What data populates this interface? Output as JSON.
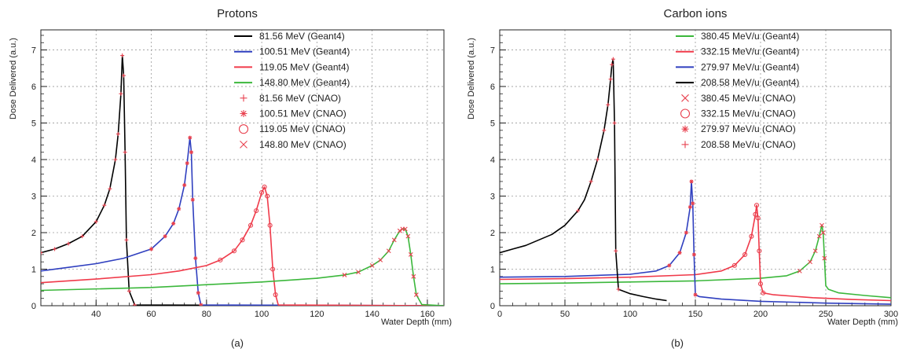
{
  "colors": {
    "black": "#000000",
    "blue": "#2f3fbf",
    "red": "#f03a4a",
    "green": "#3bb73b",
    "marker": "#e8404e",
    "grid": "#9a9a9a"
  },
  "chart_data": [
    {
      "id": "a",
      "type": "line",
      "title": "Protons",
      "caption": "(a)",
      "xlabel": "Water Depth (mm)",
      "ylabel": "Dose Delivered (a.u.)",
      "xlim": [
        20,
        166
      ],
      "ylim": [
        0,
        7.55
      ],
      "xticks": [
        40,
        60,
        80,
        100,
        120,
        140,
        160
      ],
      "yticks": [
        0,
        1,
        2,
        3,
        4,
        5,
        6,
        7
      ],
      "grid": true,
      "legend_position": "top-right",
      "series": [
        {
          "name": "81.56 MeV (Geant4)",
          "kind": "line",
          "color": "black",
          "x": [
            20,
            25,
            30,
            35,
            40,
            43,
            45,
            47,
            48,
            49,
            49.5,
            50,
            50.5,
            51,
            52,
            54,
            166
          ],
          "y": [
            1.45,
            1.55,
            1.7,
            1.9,
            2.3,
            2.75,
            3.2,
            4.0,
            4.7,
            5.8,
            6.85,
            6.3,
            4.2,
            1.8,
            0.4,
            0.02,
            0.0
          ]
        },
        {
          "name": "100.51 MeV (Geant4)",
          "kind": "line",
          "color": "blue",
          "x": [
            20,
            30,
            40,
            50,
            60,
            65,
            68,
            70,
            72,
            73,
            74,
            74.5,
            75,
            76,
            77,
            78,
            166
          ],
          "y": [
            0.95,
            1.05,
            1.15,
            1.3,
            1.55,
            1.9,
            2.25,
            2.65,
            3.3,
            3.9,
            4.6,
            4.2,
            2.9,
            1.3,
            0.35,
            0.02,
            0.0
          ]
        },
        {
          "name": "119.05 MeV (Geant4)",
          "kind": "line",
          "color": "red",
          "x": [
            20,
            40,
            60,
            70,
            80,
            85,
            90,
            93,
            96,
            98,
            100,
            101,
            102,
            103,
            104,
            105,
            106,
            166
          ],
          "y": [
            0.63,
            0.73,
            0.85,
            0.95,
            1.1,
            1.25,
            1.5,
            1.8,
            2.2,
            2.6,
            3.1,
            3.25,
            3.0,
            2.2,
            1.0,
            0.3,
            0.02,
            0.0
          ]
        },
        {
          "name": "148.80 MeV (Geant4)",
          "kind": "line",
          "color": "green",
          "x": [
            20,
            60,
            100,
            120,
            130,
            135,
            140,
            143,
            146,
            148,
            150,
            151,
            152,
            153,
            154,
            155,
            156,
            158,
            166
          ],
          "y": [
            0.42,
            0.5,
            0.65,
            0.75,
            0.84,
            0.92,
            1.1,
            1.25,
            1.5,
            1.8,
            2.05,
            2.1,
            2.1,
            1.9,
            1.4,
            0.8,
            0.3,
            0.03,
            0.0
          ]
        },
        {
          "name": "81.56 MeV (CNAO)",
          "kind": "marker",
          "marker": "plus",
          "color": "marker",
          "x": [
            20,
            25,
            30,
            35,
            40,
            43,
            45,
            47,
            48,
            49,
            49.5,
            50,
            50.5,
            51,
            52,
            54
          ],
          "y": [
            1.45,
            1.55,
            1.7,
            1.9,
            2.3,
            2.75,
            3.2,
            4.0,
            4.7,
            5.8,
            6.85,
            6.3,
            4.2,
            1.8,
            0.4,
            0.02
          ]
        },
        {
          "name": "100.51 MeV (CNAO)",
          "kind": "marker",
          "marker": "star",
          "color": "marker",
          "x": [
            60,
            65,
            68,
            70,
            72,
            73,
            74,
            74.5,
            75,
            76,
            77,
            78
          ],
          "y": [
            1.55,
            1.9,
            2.25,
            2.65,
            3.3,
            3.9,
            4.6,
            4.2,
            2.9,
            1.3,
            0.35,
            0.02
          ]
        },
        {
          "name": "119.05 MeV (CNAO)",
          "kind": "marker",
          "marker": "circle",
          "color": "marker",
          "x": [
            85,
            90,
            93,
            96,
            98,
            100,
            101,
            102,
            103,
            104,
            105
          ],
          "y": [
            1.25,
            1.5,
            1.8,
            2.2,
            2.6,
            3.1,
            3.25,
            3.0,
            2.2,
            1.0,
            0.3
          ]
        },
        {
          "name": "148.80 MeV (CNAO)",
          "kind": "marker",
          "marker": "cross",
          "color": "marker",
          "x": [
            130,
            135,
            140,
            143,
            146,
            148,
            150,
            151,
            152,
            153,
            154,
            155,
            156
          ],
          "y": [
            0.84,
            0.92,
            1.1,
            1.25,
            1.5,
            1.8,
            2.05,
            2.1,
            2.1,
            1.9,
            1.4,
            0.8,
            0.3
          ]
        }
      ]
    },
    {
      "id": "b",
      "type": "line",
      "title": "Carbon ions",
      "caption": "(b)",
      "xlabel": "Water Depth (mm)",
      "ylabel": "Dose Delivered (a.u.)",
      "xlim": [
        0,
        300
      ],
      "ylim": [
        0,
        7.55
      ],
      "xticks": [
        0,
        50,
        100,
        150,
        200,
        250,
        300
      ],
      "yticks": [
        0,
        1,
        2,
        3,
        4,
        5,
        6,
        7
      ],
      "grid": true,
      "legend_position": "top-right",
      "series": [
        {
          "name": "380.45 MeV/u (Geant4)",
          "kind": "line",
          "color": "green",
          "x": [
            0,
            50,
            100,
            150,
            200,
            220,
            230,
            238,
            242,
            245,
            247,
            248,
            249,
            250,
            252,
            260,
            280,
            300
          ],
          "y": [
            0.6,
            0.62,
            0.65,
            0.68,
            0.75,
            0.82,
            0.95,
            1.2,
            1.5,
            1.9,
            2.2,
            2.0,
            1.3,
            0.55,
            0.45,
            0.35,
            0.28,
            0.22
          ]
        },
        {
          "name": "332.15 MeV/u (Geant4)",
          "kind": "line",
          "color": "red",
          "x": [
            0,
            50,
            100,
            150,
            170,
            180,
            188,
            193,
            196,
            197,
            198,
            199,
            200,
            202,
            210,
            240,
            270,
            300
          ],
          "y": [
            0.72,
            0.74,
            0.78,
            0.85,
            0.95,
            1.1,
            1.4,
            1.9,
            2.5,
            2.75,
            2.4,
            1.5,
            0.6,
            0.35,
            0.3,
            0.22,
            0.17,
            0.14
          ]
        },
        {
          "name": "279.97 MeV/u (Geant4)",
          "kind": "line",
          "color": "blue",
          "x": [
            0,
            50,
            100,
            120,
            130,
            138,
            143,
            146,
            147,
            148,
            149,
            150,
            153,
            170,
            200,
            250,
            300
          ],
          "y": [
            0.78,
            0.8,
            0.86,
            0.95,
            1.1,
            1.45,
            2.0,
            2.7,
            3.4,
            2.8,
            1.4,
            0.3,
            0.25,
            0.18,
            0.12,
            0.07,
            0.04
          ]
        },
        {
          "name": "208.58 MeV/u (Geant4)",
          "kind": "line",
          "color": "black",
          "x": [
            0,
            10,
            20,
            30,
            40,
            50,
            60,
            65,
            70,
            75,
            80,
            83,
            85,
            86,
            87,
            88,
            89,
            91,
            100,
            110,
            120,
            128
          ],
          "y": [
            1.45,
            1.55,
            1.65,
            1.8,
            1.95,
            2.2,
            2.6,
            2.9,
            3.4,
            4.0,
            4.8,
            5.5,
            6.2,
            6.6,
            6.75,
            5.0,
            1.5,
            0.45,
            0.33,
            0.25,
            0.18,
            0.14
          ]
        },
        {
          "name": "380.45 MeV/u (CNAO)",
          "kind": "marker",
          "marker": "cross",
          "color": "marker",
          "x": [
            230,
            238,
            242,
            245,
            247,
            248,
            249
          ],
          "y": [
            0.95,
            1.2,
            1.5,
            1.9,
            2.2,
            2.0,
            1.3
          ]
        },
        {
          "name": "332.15 MeV/u (CNAO)",
          "kind": "marker",
          "marker": "circle",
          "color": "marker",
          "x": [
            180,
            188,
            193,
            196,
            197,
            198,
            199,
            200,
            202
          ],
          "y": [
            1.1,
            1.4,
            1.9,
            2.5,
            2.75,
            2.4,
            1.5,
            0.6,
            0.35
          ]
        },
        {
          "name": "279.97 MeV/u (CNAO)",
          "kind": "marker",
          "marker": "star",
          "color": "marker",
          "x": [
            130,
            138,
            143,
            146,
            147,
            148,
            149,
            150
          ],
          "y": [
            1.1,
            1.45,
            2.0,
            2.7,
            3.4,
            2.8,
            1.4,
            0.3
          ]
        },
        {
          "name": "208.58 MeV/u (CNAO)",
          "kind": "marker",
          "marker": "plus",
          "color": "marker",
          "x": [
            60,
            70,
            75,
            80,
            83,
            85,
            86,
            87,
            88,
            89,
            91
          ],
          "y": [
            2.6,
            3.4,
            4.0,
            4.8,
            5.5,
            6.2,
            6.6,
            6.75,
            5.0,
            1.5,
            0.45
          ]
        }
      ]
    }
  ]
}
